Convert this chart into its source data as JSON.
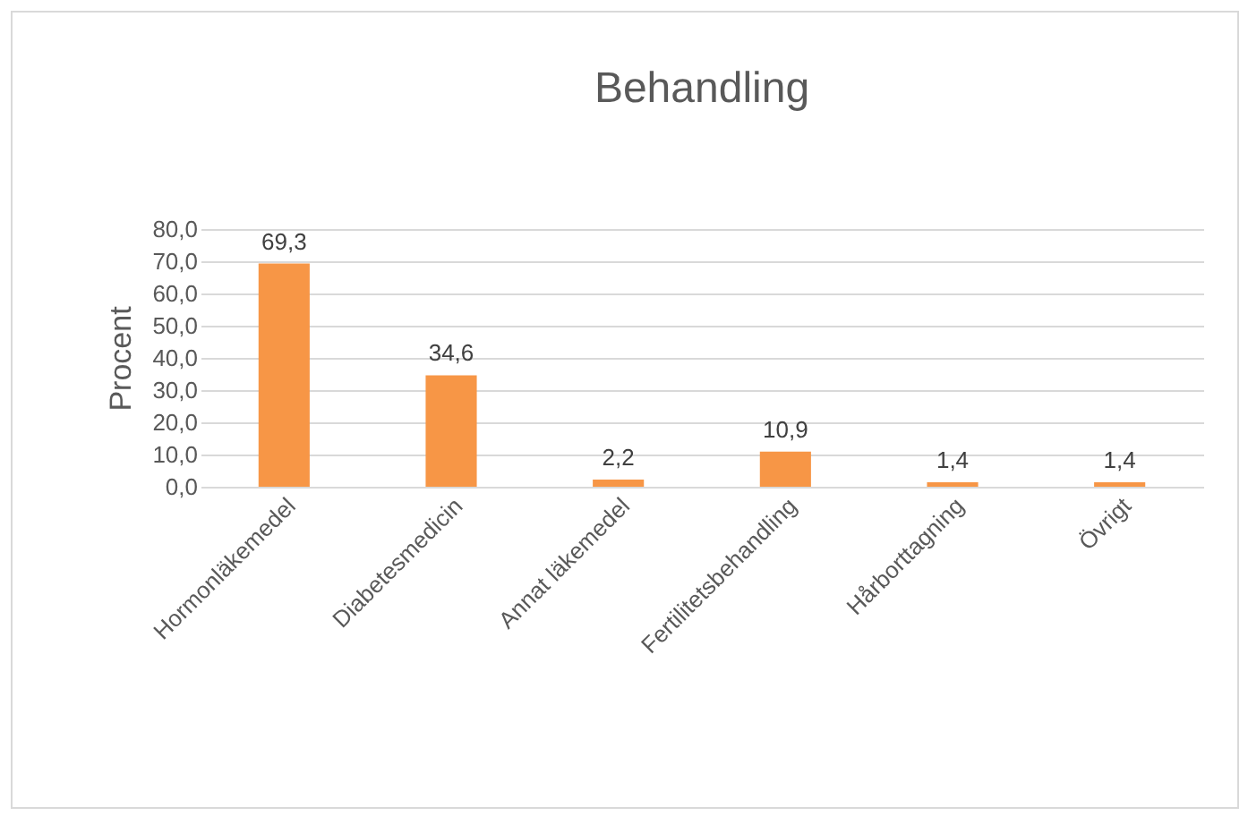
{
  "chart_data": {
    "type": "bar",
    "title": "Behandling",
    "ylabel": "Procent",
    "categories": [
      "Hormonläkemedel",
      "Diabetesmedicin",
      "Annat läkemedel",
      "Fertilitetsbehandling",
      "Hårborttagning",
      "Övrigt"
    ],
    "values": [
      69.3,
      34.6,
      2.2,
      10.9,
      1.4,
      1.4
    ],
    "value_labels": [
      "69,3",
      "34,6",
      "2,2",
      "10,9",
      "1,4",
      "1,4"
    ],
    "color": "#f79646",
    "ylim": [
      0,
      80
    ],
    "yticks": [
      {
        "value": 0,
        "label": "0,0"
      },
      {
        "value": 10,
        "label": "10,0"
      },
      {
        "value": 20,
        "label": "20,0"
      },
      {
        "value": 30,
        "label": "30,0"
      },
      {
        "value": 40,
        "label": "40,0"
      },
      {
        "value": 50,
        "label": "50,0"
      },
      {
        "value": 60,
        "label": "60,0"
      },
      {
        "value": 70,
        "label": "70,0"
      },
      {
        "value": 80,
        "label": "80,0"
      }
    ],
    "grid": "y"
  }
}
